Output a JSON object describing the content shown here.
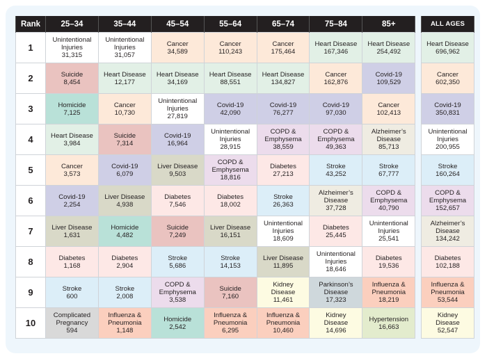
{
  "chart_data": {
    "type": "table",
    "title": "",
    "columns": [
      "Rank",
      "25–34",
      "35–44",
      "45–54",
      "55–64",
      "65–74",
      "75–84",
      "85+",
      "ALL AGES"
    ],
    "rows": [
      {
        "rank": "1",
        "cells": [
          {
            "cause": "Unintentional Injuries",
            "value": "31,315"
          },
          {
            "cause": "Unintentional Injuries",
            "value": "31,057"
          },
          {
            "cause": "Cancer",
            "value": "34,589"
          },
          {
            "cause": "Cancer",
            "value": "110,243"
          },
          {
            "cause": "Cancer",
            "value": "175,464"
          },
          {
            "cause": "Heart Disease",
            "value": "167,346"
          },
          {
            "cause": "Heart Disease",
            "value": "254,492"
          },
          {
            "cause": "Heart Disease",
            "value": "696,962"
          }
        ]
      },
      {
        "rank": "2",
        "cells": [
          {
            "cause": "Suicide",
            "value": "8,454"
          },
          {
            "cause": "Heart Disease",
            "value": "12,177"
          },
          {
            "cause": "Heart Disease",
            "value": "34,169"
          },
          {
            "cause": "Heart Disease",
            "value": "88,551"
          },
          {
            "cause": "Heart Disease",
            "value": "134,827"
          },
          {
            "cause": "Cancer",
            "value": "162,876"
          },
          {
            "cause": "Covid-19",
            "value": "109,529"
          },
          {
            "cause": "Cancer",
            "value": "602,350"
          }
        ]
      },
      {
        "rank": "3",
        "cells": [
          {
            "cause": "Homicide",
            "value": "7,125"
          },
          {
            "cause": "Cancer",
            "value": "10,730"
          },
          {
            "cause": "Unintentional Injuries",
            "value": "27,819"
          },
          {
            "cause": "Covid-19",
            "value": "42,090"
          },
          {
            "cause": "Covid-19",
            "value": "76,277"
          },
          {
            "cause": "Covid-19",
            "value": "97,030"
          },
          {
            "cause": "Cancer",
            "value": "102,413"
          },
          {
            "cause": "Covid-19",
            "value": "350,831"
          }
        ]
      },
      {
        "rank": "4",
        "cells": [
          {
            "cause": "Heart Disease",
            "value": "3,984"
          },
          {
            "cause": "Suicide",
            "value": "7,314"
          },
          {
            "cause": "Covid-19",
            "value": "16,964"
          },
          {
            "cause": "Unintentional Injuries",
            "value": "28,915"
          },
          {
            "cause": "COPD & Emphysema",
            "value": "38,559"
          },
          {
            "cause": "COPD & Emphysema",
            "value": "49,363"
          },
          {
            "cause": "Alzheimer's Disease",
            "value": "85,713"
          },
          {
            "cause": "Unintentional Injuries",
            "value": "200,955"
          }
        ]
      },
      {
        "rank": "5",
        "cells": [
          {
            "cause": "Cancer",
            "value": "3,573"
          },
          {
            "cause": "Covid-19",
            "value": "6,079"
          },
          {
            "cause": "Liver Disease",
            "value": "9,503"
          },
          {
            "cause": "COPD & Emphysema",
            "value": "18,816"
          },
          {
            "cause": "Diabetes",
            "value": "27,213"
          },
          {
            "cause": "Stroke",
            "value": "43,252"
          },
          {
            "cause": "Stroke",
            "value": "67,777"
          },
          {
            "cause": "Stroke",
            "value": "160,264"
          }
        ]
      },
      {
        "rank": "6",
        "cells": [
          {
            "cause": "Covid-19",
            "value": "2,254"
          },
          {
            "cause": "Liver Disease",
            "value": "4,938"
          },
          {
            "cause": "Diabetes",
            "value": "7,546"
          },
          {
            "cause": "Diabetes",
            "value": "18,002"
          },
          {
            "cause": "Stroke",
            "value": "26,363"
          },
          {
            "cause": "Alzheimer's Disease",
            "value": "37,728"
          },
          {
            "cause": "COPD & Emphysema",
            "value": "40,790"
          },
          {
            "cause": "COPD & Emphysema",
            "value": "152,657"
          }
        ]
      },
      {
        "rank": "7",
        "cells": [
          {
            "cause": "Liver Disease",
            "value": "1,631"
          },
          {
            "cause": "Homicide",
            "value": "4,482"
          },
          {
            "cause": "Suicide",
            "value": "7,249"
          },
          {
            "cause": "Liver Disease",
            "value": "16,151"
          },
          {
            "cause": "Unintentional Injuries",
            "value": "18,609"
          },
          {
            "cause": "Diabetes",
            "value": "25,445"
          },
          {
            "cause": "Unintentional Injuries",
            "value": "25,541"
          },
          {
            "cause": "Alzheimer's Disease",
            "value": "134,242"
          }
        ]
      },
      {
        "rank": "8",
        "cells": [
          {
            "cause": "Diabetes",
            "value": "1,168"
          },
          {
            "cause": "Diabetes",
            "value": "2,904"
          },
          {
            "cause": "Stroke",
            "value": "5,686"
          },
          {
            "cause": "Stroke",
            "value": "14,153"
          },
          {
            "cause": "Liver Disease",
            "value": "11,895"
          },
          {
            "cause": "Unintentional Injuries",
            "value": "18,646"
          },
          {
            "cause": "Diabetes",
            "value": "19,536"
          },
          {
            "cause": "Diabetes",
            "value": "102,188"
          }
        ]
      },
      {
        "rank": "9",
        "cells": [
          {
            "cause": "Stroke",
            "value": "600"
          },
          {
            "cause": "Stroke",
            "value": "2,008"
          },
          {
            "cause": "COPD & Emphysema",
            "value": "3,538"
          },
          {
            "cause": "Suicide",
            "value": "7,160"
          },
          {
            "cause": "Kidney Disease",
            "value": "11,461"
          },
          {
            "cause": "Parkinson's Disease",
            "value": "17,323"
          },
          {
            "cause": "Influenza & Pneumonia",
            "value": "18,219"
          },
          {
            "cause": "Influenza & Pneumonia",
            "value": "53,544"
          }
        ]
      },
      {
        "rank": "10",
        "cells": [
          {
            "cause": "Complicated Pregnancy",
            "value": "594"
          },
          {
            "cause": "Influenza & Pneumonia",
            "value": "1,148"
          },
          {
            "cause": "Homicide",
            "value": "2,542"
          },
          {
            "cause": "Influenza & Pneumonia",
            "value": "6,295"
          },
          {
            "cause": "Influenza & Pneumonia",
            "value": "10,460"
          },
          {
            "cause": "Kidney Disease",
            "value": "14,696"
          },
          {
            "cause": "Hypertension",
            "value": "16,663"
          },
          {
            "cause": "Kidney Disease",
            "value": "52,547"
          }
        ]
      }
    ],
    "cause_colors": {
      "Unintentional Injuries": "#ffffff",
      "Cancer": "#fde9d9",
      "Heart Disease": "#e2f0e6",
      "Suicide": "#eac3c0",
      "Homicide": "#b9e1d8",
      "Covid-19": "#cfcfe6",
      "Liver Disease": "#d9d9c8",
      "COPD & Emphysema": "#ecdcec",
      "Diabetes": "#fde8e6",
      "Stroke": "#dceef8",
      "Alzheimer's Disease": "#efece2",
      "Kidney Disease": "#fdfbe2",
      "Parkinson's Disease": "#cfd8dc",
      "Influenza & Pneumonia": "#fbcfbe",
      "Complicated Pregnancy": "#d9d9d9",
      "Hypertension": "#e3eccd"
    },
    "display_names": {
      "Unintentional Injuries": [
        "Unintentional",
        "Injuries"
      ],
      "COPD & Emphysema": [
        "COPD &",
        "Emphysema"
      ],
      "Alzheimer's Disease": [
        "Alzheimer’s",
        "Disease"
      ],
      "Kidney Disease": [
        "Kidney",
        "Disease"
      ],
      "Parkinson's Disease": [
        "Parkinson’s",
        "Disease"
      ],
      "Influenza & Pneumonia": [
        "Influenza &",
        "Pneumonia"
      ],
      "Complicated Pregnancy": [
        "Complicated",
        "Pregnancy"
      ]
    }
  }
}
